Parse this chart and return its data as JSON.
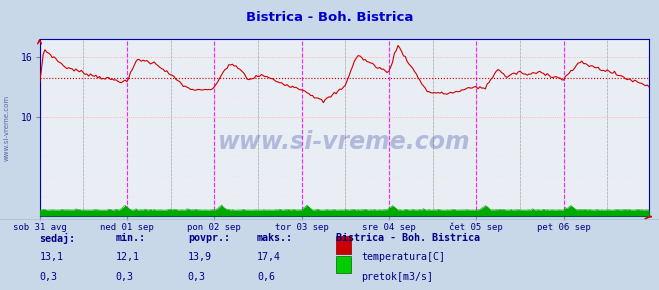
{
  "title": "Bistrica - Boh. Bistrica",
  "title_color": "#0000cc",
  "fig_bg_color": "#c8d8e8",
  "plot_bg_color": "#e8eef4",
  "x_labels": [
    "sob 31 avg",
    "ned 01 sep",
    "pon 02 sep",
    "tor 03 sep",
    "sre 04 sep",
    "čet 05 sep",
    "pet 06 sep"
  ],
  "y_ticks": [
    10,
    16
  ],
  "y_min": 0,
  "y_max": 17.8,
  "avg_line_y": 13.9,
  "avg_line_color": "#cc0000",
  "temp_color": "#cc0000",
  "flow_color": "#00aa00",
  "hgrid_color": "#ffaaaa",
  "hgrid_minor_color": "#ffdddd",
  "vgrid_color": "#cccccc",
  "vline_magenta": "#ff00ff",
  "vline_gray": "#999999",
  "axis_color": "#0000aa",
  "arrow_color": "#cc0000",
  "watermark": "www.si-vreme.com",
  "watermark_color": "#3344aa",
  "left_label": "www.si-vreme.com",
  "left_label_color": "#5566aa",
  "footer_label_color": "#000088",
  "sedaj_label": "sedaj:",
  "min_label": "min.:",
  "povpr_label": "povpr.:",
  "maks_label": "maks.:",
  "station_label": "Bistrica - Boh. Bistrica",
  "temp_sedaj": "13,1",
  "temp_min": "12,1",
  "temp_povpr": "13,9",
  "temp_maks": "17,4",
  "flow_sedaj": "0,3",
  "flow_min": "0,3",
  "flow_povpr": "0,3",
  "flow_maks": "0,6",
  "legend_temp": "temperatura[C]",
  "legend_flow": "pretok[m3/s]",
  "n_points": 336
}
